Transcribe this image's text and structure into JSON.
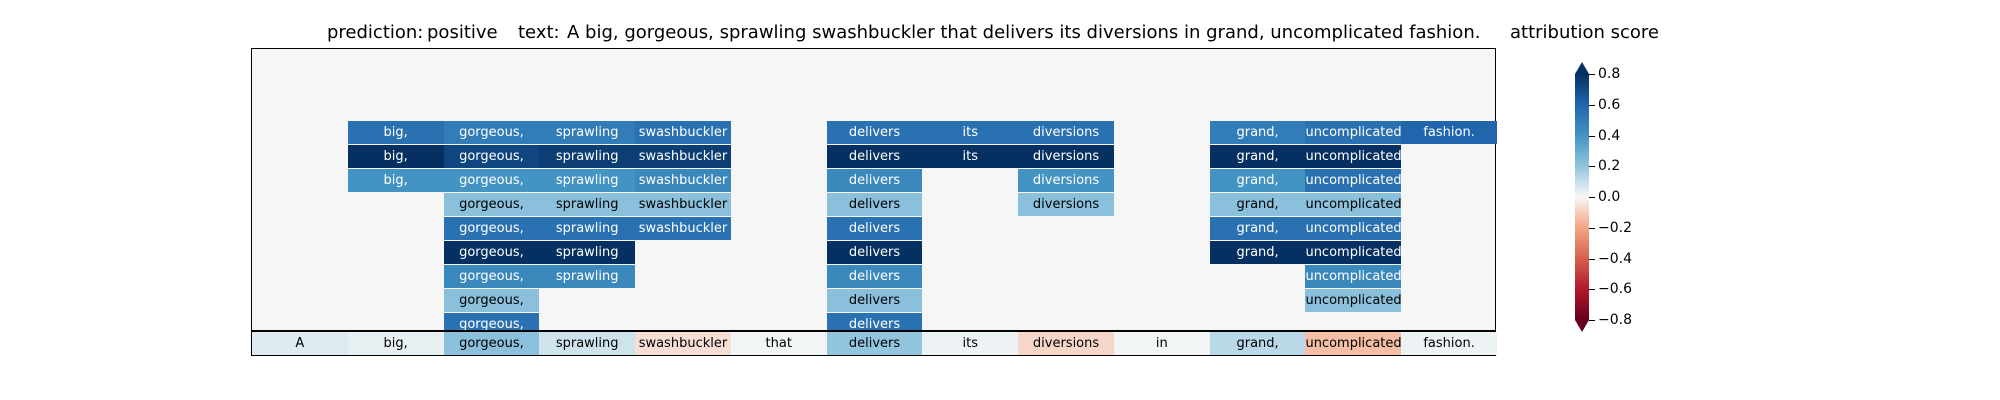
{
  "title": {
    "prediction_label": "prediction:",
    "prediction_value": "positive",
    "text_label": "text:",
    "text_value": "A big, gorgeous, sprawling swashbuckler that delivers its diversions in grand, uncomplicated fashion."
  },
  "chart_data": {
    "type": "heatmap",
    "tokens": [
      "A",
      "big,",
      "gorgeous,",
      "sprawling",
      "swashbuckler",
      "that",
      "delivers",
      "its",
      "diversions",
      "in",
      "grand,",
      "uncomplicated",
      "fashion."
    ],
    "baseline_scores": [
      0.05,
      0.03,
      0.22,
      0.08,
      -0.06,
      0.01,
      0.2,
      0.02,
      -0.08,
      0.01,
      0.12,
      -0.14,
      0.02
    ],
    "layers": [
      [
        null,
        0.55,
        0.5,
        0.5,
        0.55,
        null,
        0.55,
        0.55,
        0.55,
        null,
        0.5,
        0.55,
        0.6
      ],
      [
        null,
        0.8,
        0.72,
        0.75,
        0.75,
        null,
        0.8,
        0.8,
        0.8,
        null,
        0.8,
        0.8,
        null
      ],
      [
        null,
        0.4,
        0.4,
        0.4,
        0.45,
        null,
        0.45,
        null,
        0.4,
        null,
        0.4,
        0.55,
        null
      ],
      [
        null,
        null,
        0.22,
        0.22,
        0.22,
        null,
        0.22,
        null,
        0.22,
        null,
        0.22,
        0.22,
        null
      ],
      [
        null,
        null,
        0.55,
        0.55,
        0.55,
        null,
        0.55,
        null,
        null,
        null,
        0.55,
        0.55,
        null
      ],
      [
        null,
        null,
        0.8,
        0.8,
        null,
        null,
        0.8,
        null,
        null,
        null,
        0.8,
        0.8,
        null
      ],
      [
        null,
        null,
        0.45,
        0.45,
        null,
        null,
        0.45,
        null,
        null,
        null,
        null,
        0.45,
        null
      ],
      [
        null,
        null,
        0.22,
        null,
        null,
        null,
        0.22,
        null,
        null,
        null,
        null,
        0.22,
        null
      ],
      [
        null,
        null,
        0.55,
        null,
        null,
        null,
        0.55,
        null,
        null,
        null,
        null,
        null,
        null
      ]
    ],
    "colorbar": {
      "label": "attribution score",
      "range": [
        -0.8,
        0.8
      ],
      "ticks": [
        0.8,
        0.6,
        0.4,
        0.2,
        0.0,
        -0.2,
        -0.4,
        -0.6,
        -0.8
      ],
      "tick_labels": [
        "0.8",
        "0.6",
        "0.4",
        "0.2",
        "0.0",
        "−0.2",
        "−0.4",
        "−0.6",
        "−0.8"
      ],
      "colormap": "RdBu",
      "extend": "both"
    }
  }
}
